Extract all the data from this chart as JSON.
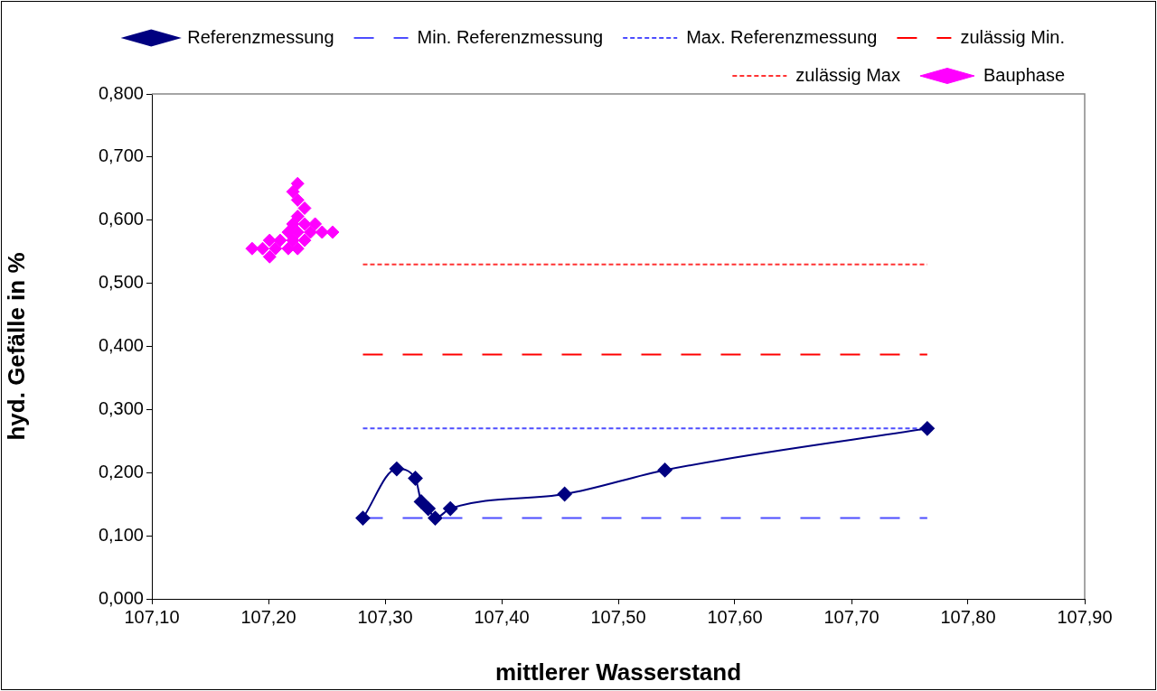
{
  "chart_data": {
    "type": "line",
    "xlabel": "mittlerer Wasserstand",
    "ylabel": "hyd. Gefälle in %",
    "xlim": [
      107.1,
      107.9
    ],
    "xticks": [
      {
        "value": 107.1,
        "label": "107,10"
      },
      {
        "value": 107.2,
        "label": "107,20"
      },
      {
        "value": 107.3,
        "label": "107,30"
      },
      {
        "value": 107.4,
        "label": "107,40"
      },
      {
        "value": 107.5,
        "label": "107,50"
      },
      {
        "value": 107.6,
        "label": "107,60"
      },
      {
        "value": 107.7,
        "label": "107,70"
      },
      {
        "value": 107.8,
        "label": "107,80"
      },
      {
        "value": 107.9,
        "label": "107,90"
      }
    ],
    "ylim": [
      0,
      0.8
    ],
    "yticks": [
      {
        "value": 0,
        "label": "0,000"
      },
      {
        "value": 0.1,
        "label": "0,100"
      },
      {
        "value": 0.2,
        "label": "0,200"
      },
      {
        "value": 0.3,
        "label": "0,300"
      },
      {
        "value": 0.4,
        "label": "0,400"
      },
      {
        "value": 0.5,
        "label": "0,500"
      },
      {
        "value": 0.6,
        "label": "0,600"
      },
      {
        "value": 0.7,
        "label": "0,700"
      },
      {
        "value": 0.8,
        "label": "0,800"
      }
    ],
    "grid": false,
    "legend": "top right",
    "series": [
      {
        "name": "Referenzmessung",
        "type": "line",
        "color": "#000080",
        "marker": "diamond",
        "line_style": "solid",
        "x": [
          107.281,
          107.31,
          107.326,
          107.331,
          107.337,
          107.343,
          107.356,
          107.454,
          107.54,
          107.765
        ],
        "values": [
          0.128,
          0.206,
          0.191,
          0.154,
          0.143,
          0.128,
          0.143,
          0.166,
          0.204,
          0.27
        ]
      },
      {
        "name": "Min. Referenzmessung",
        "type": "line",
        "color": "#4d4dff",
        "marker": "none",
        "line_style": "dashed",
        "x": [
          107.281,
          107.765
        ],
        "values": [
          0.128,
          0.128
        ]
      },
      {
        "name": "Max. Referenzmessung",
        "type": "line",
        "color": "#4d4dff",
        "marker": "none",
        "line_style": "dotted",
        "x": [
          107.281,
          107.765
        ],
        "values": [
          0.27,
          0.27
        ]
      },
      {
        "name": "zulässig Min.",
        "type": "line",
        "color": "#ff0000",
        "marker": "none",
        "line_style": "dashed",
        "x": [
          107.281,
          107.765
        ],
        "values": [
          0.387,
          0.387
        ]
      },
      {
        "name": "zulässig Max",
        "type": "line",
        "color": "#ff3333",
        "marker": "none",
        "line_style": "dotted",
        "x": [
          107.281,
          107.765
        ],
        "values": [
          0.53,
          0.53
        ]
      },
      {
        "name": "Bauphase",
        "type": "scatter",
        "color": "#ff00ff",
        "marker": "diamond",
        "x": [
          107.225,
          107.221,
          107.225,
          107.231,
          107.225,
          107.221,
          107.231,
          107.24,
          107.217,
          107.225,
          107.236,
          107.246,
          107.255,
          107.201,
          107.21,
          107.221,
          107.231,
          107.186,
          107.195,
          107.206,
          107.217,
          107.225,
          107.201
        ],
        "values": [
          0.658,
          0.645,
          0.632,
          0.619,
          0.606,
          0.594,
          0.594,
          0.594,
          0.581,
          0.581,
          0.581,
          0.581,
          0.581,
          0.568,
          0.568,
          0.568,
          0.568,
          0.555,
          0.555,
          0.555,
          0.555,
          0.555,
          0.542
        ]
      }
    ]
  }
}
